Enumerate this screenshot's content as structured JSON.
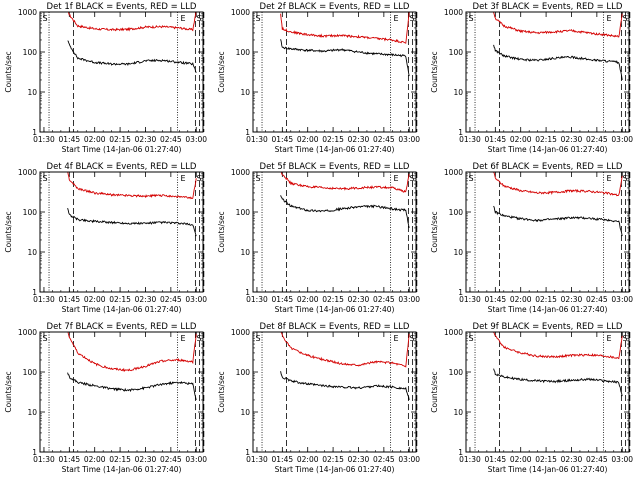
{
  "figure": {
    "ylabel": "Counts/sec",
    "xlabel": "Start Time (14-Jan-06 01:27:40)",
    "yticks": [
      1,
      10,
      100,
      1000
    ],
    "ytick_labels": [
      "1",
      "10",
      "100",
      "1000"
    ],
    "xticks": [
      "01:30",
      "01:45",
      "02:00",
      "02:15",
      "02:30",
      "02:45",
      "03:00"
    ],
    "marker_labels": [
      "S",
      "E",
      "S"
    ]
  },
  "chart_data": [
    {
      "type": "line",
      "title": "Det 1f BLACK = Events, RED = LLD",
      "xlabel": "Start Time (14-Jan-06 01:27:40)",
      "ylabel": "Counts/sec",
      "yscale": "log",
      "ylim": [
        1,
        1000
      ],
      "xlim": [
        "01:27:40",
        "03:04:00"
      ],
      "x": [
        "01:44",
        "01:45",
        "01:50",
        "02:00",
        "02:10",
        "02:20",
        "02:30",
        "02:40",
        "02:50",
        "02:58",
        "03:00"
      ],
      "series": [
        {
          "color": "#d40000",
          "values": [
            1200,
            850,
            450,
            380,
            360,
            370,
            420,
            430,
            400,
            360,
            1100
          ]
        },
        {
          "color": "#000000",
          "values": [
            200,
            150,
            70,
            55,
            50,
            50,
            60,
            62,
            55,
            50,
            30
          ]
        }
      ]
    },
    {
      "type": "line",
      "title": "Det 2f BLACK = Events, RED = LLD",
      "xlabel": "Start Time (14-Jan-06 01:27:40)",
      "ylabel": "Counts/sec",
      "yscale": "log",
      "ylim": [
        1,
        1000
      ],
      "xlim": [
        "01:27:40",
        "03:04:00"
      ],
      "x": [
        "01:44",
        "01:45",
        "01:50",
        "02:00",
        "02:10",
        "02:20",
        "02:30",
        "02:40",
        "02:50",
        "02:58",
        "03:00"
      ],
      "series": [
        {
          "color": "#d40000",
          "values": [
            900,
            380,
            320,
            270,
            250,
            260,
            240,
            220,
            200,
            170,
            1000
          ]
        },
        {
          "color": "#000000",
          "values": [
            200,
            130,
            120,
            110,
            105,
            115,
            100,
            90,
            85,
            80,
            25
          ]
        }
      ]
    },
    {
      "type": "line",
      "title": "Det 3f BLACK = Events, RED = LLD",
      "xlabel": "Start Time (14-Jan-06 01:27:40)",
      "ylabel": "Counts/sec",
      "yscale": "log",
      "ylim": [
        1,
        1000
      ],
      "xlim": [
        "01:27:40",
        "03:04:00"
      ],
      "x": [
        "01:44",
        "01:45",
        "01:50",
        "02:00",
        "02:10",
        "02:20",
        "02:30",
        "02:40",
        "02:50",
        "02:58",
        "03:00"
      ],
      "series": [
        {
          "color": "#d40000",
          "values": [
            1000,
            700,
            450,
            330,
            300,
            320,
            340,
            300,
            270,
            240,
            900
          ]
        },
        {
          "color": "#000000",
          "values": [
            150,
            110,
            80,
            65,
            62,
            70,
            75,
            65,
            60,
            55,
            20
          ]
        }
      ]
    },
    {
      "type": "line",
      "title": "Det 4f BLACK = Events, RED = LLD",
      "xlabel": "Start Time (14-Jan-06 01:27:40)",
      "ylabel": "Counts/sec",
      "yscale": "log",
      "ylim": [
        1,
        1000
      ],
      "xlim": [
        "01:27:40",
        "03:04:00"
      ],
      "x": [
        "01:44",
        "01:45",
        "01:50",
        "02:00",
        "02:10",
        "02:20",
        "02:30",
        "02:40",
        "02:50",
        "02:58",
        "03:00"
      ],
      "series": [
        {
          "color": "#d40000",
          "values": [
            1000,
            650,
            380,
            300,
            270,
            260,
            250,
            260,
            240,
            220,
            700
          ]
        },
        {
          "color": "#000000",
          "values": [
            130,
            85,
            65,
            58,
            55,
            52,
            52,
            55,
            52,
            48,
            25
          ]
        }
      ]
    },
    {
      "type": "line",
      "title": "Det 5f BLACK = Events, RED = LLD",
      "xlabel": "Start Time (14-Jan-06 01:27:40)",
      "ylabel": "Counts/sec",
      "yscale": "log",
      "ylim": [
        1,
        1000
      ],
      "xlim": [
        "01:27:40",
        "03:04:00"
      ],
      "x": [
        "01:44",
        "01:45",
        "01:50",
        "02:00",
        "02:10",
        "02:20",
        "02:30",
        "02:40",
        "02:50",
        "02:58",
        "03:00"
      ],
      "series": [
        {
          "color": "#d40000",
          "values": [
            1000,
            900,
            520,
            430,
            400,
            380,
            400,
            420,
            400,
            320,
            900
          ]
        },
        {
          "color": "#000000",
          "values": [
            250,
            210,
            140,
            110,
            105,
            120,
            135,
            140,
            120,
            110,
            40
          ]
        }
      ]
    },
    {
      "type": "line",
      "title": "Det 6f BLACK = Events, RED = LLD",
      "xlabel": "Start Time (14-Jan-06 01:27:40)",
      "ylabel": "Counts/sec",
      "yscale": "log",
      "ylim": [
        1,
        1000
      ],
      "xlim": [
        "01:27:40",
        "03:04:00"
      ],
      "x": [
        "01:44",
        "01:45",
        "01:50",
        "02:00",
        "02:10",
        "02:20",
        "02:30",
        "02:40",
        "02:50",
        "02:58",
        "03:00"
      ],
      "series": [
        {
          "color": "#d40000",
          "values": [
            1000,
            700,
            450,
            340,
            300,
            310,
            340,
            330,
            300,
            260,
            800
          ]
        },
        {
          "color": "#000000",
          "values": [
            140,
            100,
            80,
            68,
            62,
            66,
            72,
            70,
            64,
            58,
            25
          ]
        }
      ]
    },
    {
      "type": "line",
      "title": "Det 7f BLACK = Events, RED = LLD",
      "xlabel": "Start Time (14-Jan-06 01:27:40)",
      "ylabel": "Counts/sec",
      "yscale": "log",
      "ylim": [
        1,
        1000
      ],
      "xlim": [
        "01:27:40",
        "03:04:00"
      ],
      "x": [
        "01:44",
        "01:45",
        "01:50",
        "02:00",
        "02:10",
        "02:20",
        "02:30",
        "02:40",
        "02:50",
        "02:58",
        "03:00"
      ],
      "series": [
        {
          "color": "#d40000",
          "values": [
            1100,
            750,
            300,
            160,
            120,
            110,
            140,
            190,
            200,
            180,
            900
          ]
        },
        {
          "color": "#000000",
          "values": [
            100,
            75,
            55,
            45,
            38,
            35,
            40,
            50,
            55,
            50,
            20
          ]
        }
      ]
    },
    {
      "type": "line",
      "title": "Det 8f BLACK = Events, RED = LLD",
      "xlabel": "Start Time (14-Jan-06 01:27:40)",
      "ylabel": "Counts/sec",
      "yscale": "log",
      "ylim": [
        1,
        1000
      ],
      "xlim": [
        "01:27:40",
        "03:04:00"
      ],
      "x": [
        "01:44",
        "01:45",
        "01:50",
        "02:00",
        "02:10",
        "02:20",
        "02:30",
        "02:40",
        "02:50",
        "02:58",
        "03:00"
      ],
      "series": [
        {
          "color": "#d40000",
          "values": [
            1100,
            800,
            400,
            260,
            200,
            160,
            150,
            180,
            170,
            140,
            900
          ]
        },
        {
          "color": "#000000",
          "values": [
            100,
            75,
            60,
            50,
            45,
            42,
            40,
            45,
            42,
            38,
            20
          ]
        }
      ]
    },
    {
      "type": "line",
      "title": "Det 9f BLACK = Events, RED = LLD",
      "xlabel": "Start Time (14-Jan-06 01:27:40)",
      "ylabel": "Counts/sec",
      "yscale": "log",
      "ylim": [
        1,
        1000
      ],
      "xlim": [
        "01:27:40",
        "03:04:00"
      ],
      "x": [
        "01:44",
        "01:45",
        "01:50",
        "02:00",
        "02:10",
        "02:20",
        "02:30",
        "02:40",
        "02:50",
        "02:58",
        "03:00"
      ],
      "series": [
        {
          "color": "#d40000",
          "values": [
            1000,
            800,
            420,
            300,
            250,
            240,
            260,
            270,
            250,
            220,
            800
          ]
        },
        {
          "color": "#000000",
          "values": [
            120,
            90,
            75,
            65,
            60,
            58,
            62,
            66,
            60,
            55,
            25
          ]
        }
      ]
    }
  ]
}
